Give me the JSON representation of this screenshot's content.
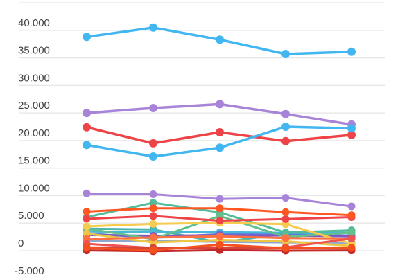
{
  "page": {
    "background": "#ffffff",
    "grid_color": "#e6e6e6",
    "label_color": "#424242"
  },
  "chart_data": {
    "type": "line",
    "title": "",
    "legend_visible": false,
    "grid": "horizontal-only",
    "y_axis": {
      "ylim": [
        -5000,
        45000
      ],
      "tick_step": 5000,
      "number_format": "dot-thousand-separator",
      "tick_labels": [
        {
          "label": "40.000",
          "value": 40000
        },
        {
          "label": "35.000",
          "value": 35000
        },
        {
          "label": "30.000",
          "value": 30000
        },
        {
          "label": "25.000",
          "value": 25000
        },
        {
          "label": "20.000",
          "value": 20000
        },
        {
          "label": "15.000",
          "value": 15000
        },
        {
          "label": "10.000",
          "value": 10000
        },
        {
          "label": "5.000",
          "value": 5000
        },
        {
          "label": "0",
          "value": 0
        },
        {
          "label": "-5.000",
          "value": -5000
        }
      ],
      "gridline_values": [
        45000,
        40000,
        35000,
        30000,
        25000,
        20000,
        15000,
        10000,
        5000,
        0
      ]
    },
    "x_axis": {
      "num_points": 5,
      "labels_visible": false,
      "point_indices": [
        1,
        2,
        3,
        4,
        5
      ]
    },
    "series": [
      {
        "name": "purple-low",
        "color": "#a884d8",
        "band": "lower",
        "values": [
          10400,
          10250,
          9400,
          9600,
          8050
        ]
      },
      {
        "name": "teal-2",
        "color": "#4ab5ac",
        "band": "lower",
        "values": [
          4000,
          3850,
          1500,
          3100,
          3250
        ]
      },
      {
        "name": "cyan-1",
        "color": "#48b8d8",
        "band": "lower",
        "values": [
          3500,
          3350,
          3350,
          3250,
          3250
        ]
      },
      {
        "name": "blue-1",
        "color": "#5b86de",
        "band": "lower",
        "values": [
          3100,
          2350,
          3000,
          2900,
          2750
        ]
      },
      {
        "name": "slate-1",
        "color": "#8fa8cc",
        "band": "lower",
        "values": [
          1700,
          1800,
          1600,
          1500,
          1450
        ]
      },
      {
        "name": "violet-1",
        "color": "#7e57c2",
        "band": "lower",
        "values": [
          2850,
          2700,
          2800,
          2750,
          2600
        ]
      },
      {
        "name": "teal-1",
        "color": "#52bb9a",
        "band": "lower",
        "values": [
          6100,
          8700,
          6950,
          3300,
          3700
        ]
      },
      {
        "name": "green-1",
        "color": "#63c08b",
        "band": "lower",
        "values": [
          4000,
          2100,
          6300,
          2500,
          3300
        ]
      },
      {
        "name": "yellow-2",
        "color": "#efc544",
        "band": "lower",
        "values": [
          3100,
          1500,
          1950,
          1700,
          850
        ]
      },
      {
        "name": "amber-1",
        "color": "#f7cb4d",
        "band": "lower",
        "values": [
          4400,
          4850,
          5050,
          4800,
          1250
        ]
      },
      {
        "name": "orange-2",
        "color": "#ff7043",
        "band": "lower",
        "values": [
          2100,
          2400,
          2600,
          2300,
          2200
        ]
      },
      {
        "name": "red-3",
        "color": "#ef5350",
        "band": "lower",
        "values": [
          1250,
          500,
          500,
          600,
          2200
        ]
      },
      {
        "name": "red-4",
        "color": "#d4453c",
        "band": "lower",
        "values": [
          600,
          500,
          450,
          500,
          450
        ]
      },
      {
        "name": "red-5",
        "color": "#c62828",
        "band": "lower",
        "values": [
          50,
          -100,
          100,
          0,
          50
        ]
      },
      {
        "name": "red-2",
        "color": "#ee4448",
        "band": "lower",
        "values": [
          5800,
          6300,
          5450,
          5750,
          6100
        ]
      },
      {
        "name": "orange-3",
        "color": "#f4511e",
        "band": "lower",
        "values": [
          500,
          100,
          1100,
          450,
          500
        ]
      },
      {
        "name": "orange-1",
        "color": "#ff5722",
        "band": "lower",
        "values": [
          7100,
          7700,
          7700,
          7000,
          6450
        ]
      },
      {
        "name": "sky-blue-1",
        "color": "#41b6f0",
        "band": "upper",
        "values": [
          38800,
          40500,
          38300,
          35700,
          36100
        ]
      },
      {
        "name": "red-1",
        "color": "#ee4448",
        "band": "upper",
        "values": [
          22400,
          19500,
          21500,
          19900,
          21000
        ]
      },
      {
        "name": "purple-1",
        "color": "#a884d8",
        "band": "upper",
        "values": [
          25000,
          25900,
          26600,
          24800,
          22900
        ]
      },
      {
        "name": "sky-blue-2",
        "color": "#41b6f0",
        "band": "upper",
        "values": [
          19200,
          17100,
          18700,
          22500,
          22200
        ]
      }
    ]
  }
}
